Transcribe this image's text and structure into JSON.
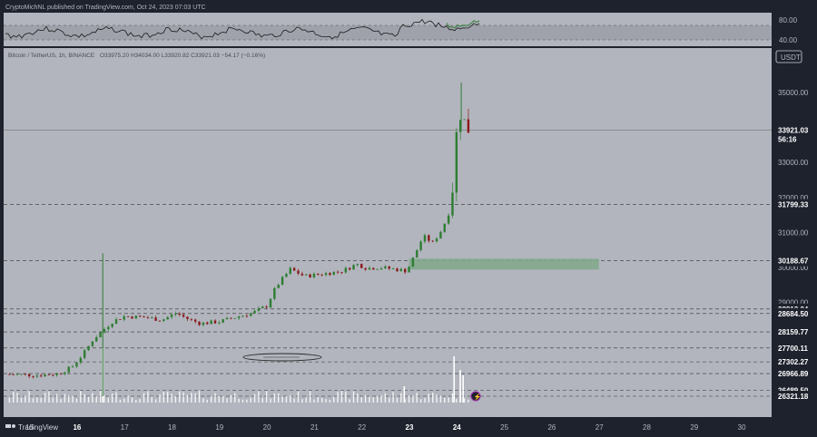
{
  "header": {
    "published": "CryptoMichNL published on TradingView.com, Oct 24, 2023 07:03 UTC",
    "pair": "Bitcoin / TetherUS, 1h, BINANCE",
    "ohlc": "O33975.20  H34034.00  L33920.82  C33921.03  −54.17 (−0.16%)",
    "currency": "USDT",
    "countdown": "56:16"
  },
  "indicator": {
    "ticks": [
      "80.00",
      "40.00"
    ]
  },
  "footer": {
    "brand": "TradingView"
  },
  "colors": {
    "background": "#b2b5be",
    "frame": "#1e222d",
    "up": "#2e7d32",
    "down": "#8b1a1a",
    "zone": "#7fa88a",
    "volume": "#ffffff"
  },
  "chart_data": {
    "type": "candlestick",
    "y_unit": "USDT",
    "ylim": [
      26321,
      36100
    ],
    "x_ticks": [
      "15",
      "16",
      "17",
      "18",
      "19",
      "20",
      "21",
      "22",
      "23",
      "24",
      "25",
      "26",
      "27",
      "28",
      "29",
      "30"
    ],
    "x_bold_ticks": [
      "16",
      "23",
      "24"
    ],
    "y_ticks": [
      "35000.00",
      "33000.00",
      "32000.00",
      "31000.00",
      "30000.00",
      "29000.00"
    ],
    "current_price": "33921.03",
    "horizontal_levels": [
      "31799.33",
      "30188.67",
      "28813.24",
      "28684.50",
      "28159.77",
      "27700.11",
      "27302.27",
      "26966.89",
      "26489.50",
      "26321.18"
    ],
    "demand_zone": {
      "from_day": 23.0,
      "to_day": 27.0,
      "low": 29940,
      "high": 30250
    },
    "annotation": "ellipse around the range low near 27300 on Oct 19-20",
    "price_path": [
      [
        14.5,
        26950
      ],
      [
        15.2,
        26920
      ],
      [
        15.6,
        26960
      ],
      [
        15.9,
        27150
      ],
      [
        16.15,
        27550
      ],
      [
        16.35,
        27950
      ],
      [
        16.55,
        28200
      ],
      [
        16.75,
        28450
      ],
      [
        17.0,
        28600
      ],
      [
        17.4,
        28580
      ],
      [
        17.8,
        28500
      ],
      [
        18.1,
        28700
      ],
      [
        18.3,
        28550
      ],
      [
        18.6,
        28400
      ],
      [
        19.0,
        28450
      ],
      [
        19.3,
        28560
      ],
      [
        19.7,
        28700
      ],
      [
        20.0,
        28900
      ],
      [
        20.2,
        29450
      ],
      [
        20.5,
        29950
      ],
      [
        20.8,
        29750
      ],
      [
        21.2,
        29820
      ],
      [
        21.6,
        29900
      ],
      [
        21.9,
        30100
      ],
      [
        22.1,
        29980
      ],
      [
        22.4,
        30000
      ],
      [
        22.7,
        29950
      ],
      [
        22.95,
        29900
      ],
      [
        23.1,
        30300
      ],
      [
        23.3,
        30900
      ],
      [
        23.5,
        30700
      ],
      [
        23.7,
        31100
      ],
      [
        23.85,
        31600
      ],
      [
        23.95,
        32600
      ],
      [
        24.0,
        33800
      ],
      [
        24.05,
        34600
      ],
      [
        24.1,
        34300
      ],
      [
        24.15,
        34200
      ],
      [
        24.25,
        33950
      ],
      [
        24.33,
        33921
      ]
    ],
    "wicks": [
      [
        16.55,
        26321,
        30400
      ],
      [
        24.1,
        33950,
        35280
      ]
    ],
    "volume_spikes": [
      [
        16.55,
        1.0
      ],
      [
        23.95,
        0.85
      ],
      [
        24.08,
        0.6
      ],
      [
        24.14,
        0.5
      ],
      [
        22.9,
        0.3
      ]
    ]
  }
}
